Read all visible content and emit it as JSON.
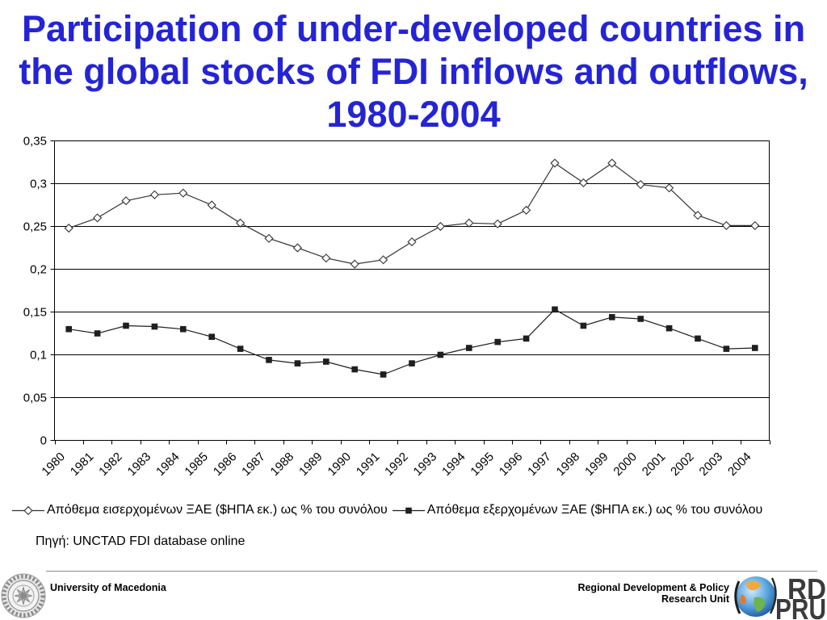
{
  "chart_data": {
    "type": "line",
    "title_lines": [
      "Participation of under-developed countries in",
      "the global stocks of FDI inflows and outflows,",
      "1980-2004"
    ],
    "categories": [
      "1980",
      "1981",
      "1982",
      "1983",
      "1984",
      "1985",
      "1986",
      "1987",
      "1988",
      "1989",
      "1990",
      "1991",
      "1992",
      "1993",
      "1994",
      "1995",
      "1996",
      "1997",
      "1998",
      "1999",
      "2000",
      "2001",
      "2002",
      "2003",
      "2004"
    ],
    "ylim": [
      0,
      0.35
    ],
    "y_ticks": [
      0,
      0.05,
      0.1,
      0.15,
      0.2,
      0.25,
      0.3,
      0.35
    ],
    "y_tick_labels": [
      "0",
      "0,05",
      "0,1",
      "0,15",
      "0,2",
      "0,25",
      "0,3",
      "0,35"
    ],
    "grid": true,
    "legend_position": "bottom",
    "series": [
      {
        "name": "Απόθεμα εισερχομένων ΞΑΕ ($ΗΠΑ εκ.) ως % του συνόλου",
        "marker": "open-diamond",
        "color": "#333333",
        "values": [
          0.248,
          0.26,
          0.28,
          0.287,
          0.289,
          0.275,
          0.254,
          0.236,
          0.225,
          0.213,
          0.206,
          0.211,
          0.232,
          0.25,
          0.254,
          0.253,
          0.269,
          0.324,
          0.301,
          0.324,
          0.299,
          0.295,
          0.263,
          0.251,
          0.251
        ]
      },
      {
        "name": "Απόθεμα εξερχομένων ΞΑΕ ($ΗΠΑ εκ.) ως % του συνόλου",
        "marker": "filled-square",
        "color": "#1f1f1f",
        "values": [
          0.13,
          0.125,
          0.134,
          0.133,
          0.13,
          0.121,
          0.107,
          0.094,
          0.09,
          0.092,
          0.083,
          0.077,
          0.09,
          0.1,
          0.108,
          0.115,
          0.119,
          0.153,
          0.134,
          0.144,
          0.142,
          0.131,
          0.119,
          0.107,
          0.108
        ]
      }
    ],
    "source": "Πηγή: UNCTAD FDI database online"
  },
  "footer": {
    "university": "University of Macedonia",
    "unit_line_1": "Regional Development & Policy",
    "unit_line_2": "Research Unit",
    "logo_line_1": "RD",
    "logo_line_2": "PRU"
  },
  "colors": {
    "title": "#2424d6",
    "axis": "#000000",
    "grid": "#000000",
    "footer_rule": "#8c8c8c"
  }
}
